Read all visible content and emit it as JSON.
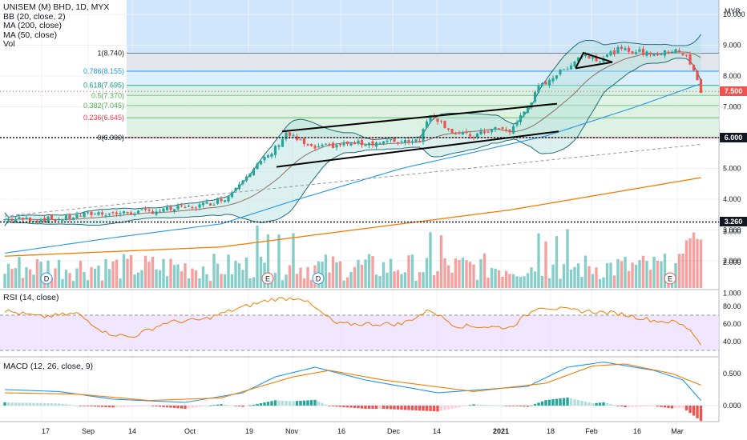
{
  "legend": {
    "symbol": "UNISEM (M) BHD, 1D, MYX",
    "bb": "BB (20, close, 2)",
    "ma200": "MA (200, close)",
    "ma50": "MA (50, close)",
    "vol": "Vol"
  },
  "currency": "MYR",
  "rsi_label": "RSI (14, close)",
  "macd_label": "MACD (12, 26, close, 9)",
  "badges": {
    "last_price": {
      "text": "7.500",
      "color": "#ef5350"
    },
    "level_high": {
      "text": "6.000",
      "color": "#131722"
    },
    "level_low": {
      "text": "3.260",
      "color": "#131722"
    }
  },
  "colors": {
    "up": "#26a69a",
    "down": "#ef5350",
    "ma200": "#f57c00",
    "ma50": "#2196f3",
    "bb_band": "#1e6e78",
    "bb_basis": "#8d6e63",
    "rsi": "#f57c00",
    "macd": "#2196f3",
    "signal": "#f57c00"
  },
  "chart_data": [
    {
      "type": "candlestick",
      "title": "UNISEM (M) BHD, 1D, MYX",
      "ylim": [
        1.0,
        10.6
      ],
      "y_ticks": [
        "10.000",
        "9.000",
        "8.000",
        "7.000",
        "6.000",
        "5.000",
        "4.000",
        "3.000",
        "2.000",
        "1.000"
      ],
      "x_ticks": [
        "17",
        "Sep",
        "14",
        "Oct",
        "19",
        "Nov",
        "16",
        "Dec",
        "14",
        "2021",
        "18",
        "Feb",
        "16",
        "Mar"
      ],
      "fib_levels": [
        {
          "label": "1(8.740)",
          "value": 8.74
        },
        {
          "label": "0.786(8.155)",
          "value": 8.155
        },
        {
          "label": "0.618(7.695)",
          "value": 7.695
        },
        {
          "label": "0.5(7.370)",
          "value": 7.37
        },
        {
          "label": "0.382(7.045)",
          "value": 7.045
        },
        {
          "label": "0.236(6.645)",
          "value": 6.645
        },
        {
          "label": "0(6.000)",
          "value": 6.0
        }
      ],
      "horizontal_levels": [
        6.0,
        3.26
      ],
      "last_price": 7.5,
      "events": [
        "D",
        "E",
        "D",
        "E"
      ],
      "price_anchors": [
        [
          0,
          3.35
        ],
        [
          15,
          3.35
        ],
        [
          25,
          3.55
        ],
        [
          33,
          3.55
        ],
        [
          40,
          3.6
        ],
        [
          52,
          3.75
        ],
        [
          58,
          3.9
        ],
        [
          62,
          4.1
        ],
        [
          66,
          4.7
        ],
        [
          70,
          5.1
        ],
        [
          74,
          5.5
        ],
        [
          78,
          6.15
        ],
        [
          85,
          5.65
        ],
        [
          95,
          5.8
        ],
        [
          105,
          5.85
        ],
        [
          115,
          5.95
        ],
        [
          118,
          6.8
        ],
        [
          125,
          6.1
        ],
        [
          130,
          6.05
        ],
        [
          136,
          6.3
        ],
        [
          140,
          6.2
        ],
        [
          145,
          7.0
        ],
        [
          148,
          7.6
        ],
        [
          151,
          7.9
        ],
        [
          155,
          8.2
        ],
        [
          160,
          8.7
        ],
        [
          165,
          8.55
        ],
        [
          170,
          8.85
        ],
        [
          175,
          8.8
        ],
        [
          182,
          8.7
        ],
        [
          186,
          8.9
        ],
        [
          189,
          8.6
        ],
        [
          191,
          8.15
        ],
        [
          193,
          7.5
        ]
      ],
      "ma200_anchors": [
        [
          0,
          2.15
        ],
        [
          60,
          2.45
        ],
        [
          100,
          3.05
        ],
        [
          140,
          3.65
        ],
        [
          193,
          4.7
        ]
      ],
      "ma50_anchors": [
        [
          0,
          2.25
        ],
        [
          30,
          2.75
        ],
        [
          60,
          3.2
        ],
        [
          80,
          3.95
        ],
        [
          110,
          5.0
        ],
        [
          150,
          6.05
        ],
        [
          175,
          7.0
        ],
        [
          193,
          7.75
        ]
      ],
      "trendline": {
        "start": [
          0,
          3.45
        ],
        "end": [
          193,
          5.78
        ]
      }
    },
    {
      "type": "bar",
      "title": "Vol",
      "y_ticks": [
        "3.000",
        "2.000",
        "1.000"
      ]
    },
    {
      "type": "line",
      "title": "RSI (14, close)",
      "ylim": [
        20,
        95
      ],
      "y_ticks": [
        "80.00",
        "60.00",
        "40.00"
      ],
      "bands": [
        30,
        70
      ],
      "anchors": [
        [
          0,
          75
        ],
        [
          10,
          68
        ],
        [
          20,
          72
        ],
        [
          28,
          50
        ],
        [
          35,
          45
        ],
        [
          45,
          62
        ],
        [
          55,
          65
        ],
        [
          65,
          78
        ],
        [
          74,
          88
        ],
        [
          82,
          90
        ],
        [
          88,
          72
        ],
        [
          92,
          60
        ],
        [
          110,
          60
        ],
        [
          118,
          76
        ],
        [
          125,
          58
        ],
        [
          140,
          56
        ],
        [
          148,
          80
        ],
        [
          156,
          76
        ],
        [
          170,
          72
        ],
        [
          180,
          64
        ],
        [
          186,
          62
        ],
        [
          190,
          54
        ],
        [
          193,
          37
        ]
      ]
    },
    {
      "type": "line",
      "title": "MACD (12, 26, close, 9)",
      "ylim": [
        -0.2,
        0.75
      ],
      "y_ticks": [
        "0.500",
        "0.000"
      ],
      "macd_anchors": [
        [
          0,
          0.25
        ],
        [
          15,
          0.22
        ],
        [
          30,
          0.1
        ],
        [
          50,
          0.05
        ],
        [
          66,
          0.2
        ],
        [
          75,
          0.45
        ],
        [
          86,
          0.6
        ],
        [
          100,
          0.4
        ],
        [
          120,
          0.2
        ],
        [
          145,
          0.3
        ],
        [
          156,
          0.6
        ],
        [
          166,
          0.68
        ],
        [
          180,
          0.55
        ],
        [
          188,
          0.4
        ],
        [
          193,
          0.08
        ]
      ],
      "signal_anchors": [
        [
          0,
          0.2
        ],
        [
          20,
          0.18
        ],
        [
          40,
          0.08
        ],
        [
          60,
          0.12
        ],
        [
          80,
          0.45
        ],
        [
          90,
          0.55
        ],
        [
          105,
          0.4
        ],
        [
          130,
          0.22
        ],
        [
          150,
          0.35
        ],
        [
          163,
          0.62
        ],
        [
          172,
          0.65
        ],
        [
          185,
          0.5
        ],
        [
          193,
          0.32
        ]
      ]
    }
  ]
}
